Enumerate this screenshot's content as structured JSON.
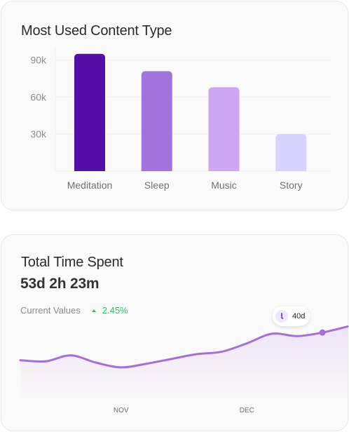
{
  "bar_card": {
    "title": "Most Used Content Type"
  },
  "line_card": {
    "title": "Total Time Spent",
    "total_value": "53d 2h 23m",
    "current_label": "Current Values",
    "change_pct": "2.45%",
    "tooltip_value": "40d"
  },
  "colors": {
    "meditation": "#520ea6",
    "sleep": "#a174dd",
    "music": "#cda7f2",
    "story": "#d6d3fe",
    "line": "#a66ed8",
    "positive": "#2ebd6b"
  },
  "chart_data": [
    {
      "type": "bar",
      "title": "Most Used Content Type",
      "categories": [
        "Meditation",
        "Sleep",
        "Music",
        "Story"
      ],
      "values": [
        95000,
        81000,
        68000,
        30000
      ],
      "ytick_labels": [
        "30k",
        "60k",
        "90k"
      ],
      "yticks": [
        30000,
        60000,
        90000
      ],
      "ylim": [
        0,
        100000
      ],
      "grid": true,
      "bar_colors": [
        "#520ea6",
        "#a174dd",
        "#cda7f2",
        "#d6d3fe"
      ]
    },
    {
      "type": "area",
      "title": "Total Time Spent",
      "x_tick_labels": [
        "NOV",
        "DEC"
      ],
      "x_ticks": [
        4,
        9
      ],
      "x": [
        0,
        1,
        2,
        3,
        4,
        5,
        6,
        7,
        8,
        9,
        10,
        11,
        12,
        13
      ],
      "values": [
        30,
        29,
        34,
        28,
        24,
        27,
        31,
        35,
        37,
        44,
        52,
        50,
        53,
        58
      ],
      "ylim": [
        0,
        70
      ],
      "highlight_index": 12,
      "highlight_label": "40d",
      "grid": false
    }
  ]
}
